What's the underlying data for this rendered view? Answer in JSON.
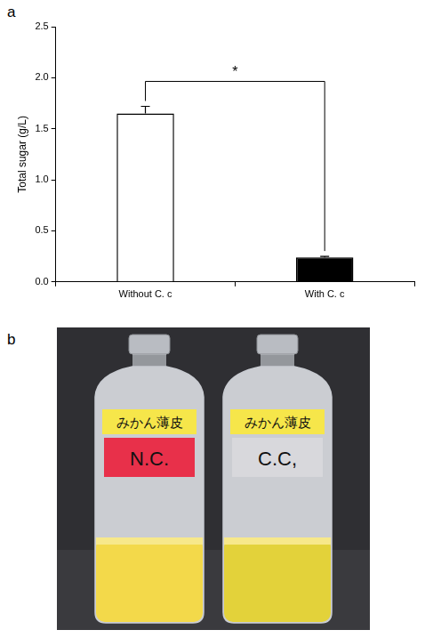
{
  "chart_data": {
    "type": "bar",
    "panel": "a",
    "y_label": "Total sugar (g/L)",
    "categories": [
      "Without C. c",
      "With C. c"
    ],
    "values": [
      1.65,
      0.24
    ],
    "errors": [
      0.07,
      0.01
    ],
    "colors": [
      "#ffffff",
      "#000000"
    ],
    "ylim": [
      0,
      2.5
    ],
    "yticks": [
      {
        "value": 0,
        "label": "0.0"
      },
      0.5,
      {
        "value": 1,
        "label": "1.0"
      },
      1.5,
      {
        "value": 2,
        "label": "2.0"
      },
      2.5
    ],
    "grid": false,
    "significance": {
      "text": "*",
      "categories": [
        "Without C. c",
        "With C. c"
      ]
    }
  },
  "photo": {
    "panel": "b",
    "bottles": [
      {
        "tape": "みかん薄皮",
        "label": "N.C.",
        "label_color": "#e8304a"
      },
      {
        "tape": "みかん薄皮",
        "label": "C.C,",
        "label_color": "#d8d8dc"
      }
    ]
  }
}
